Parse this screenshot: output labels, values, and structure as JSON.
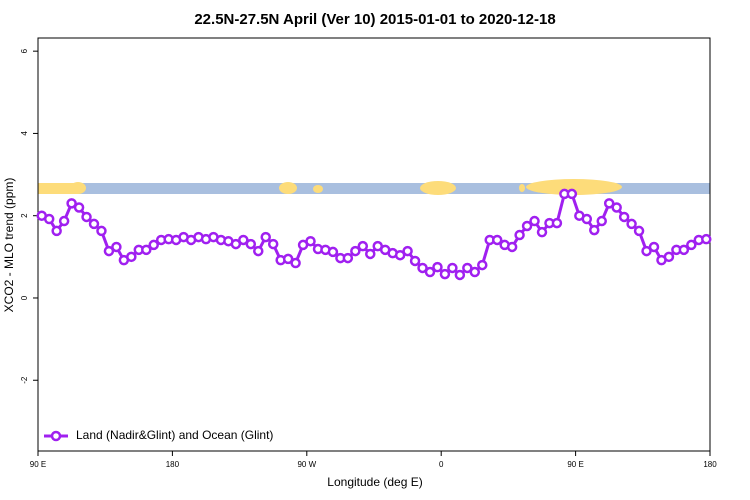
{
  "chart_data": {
    "type": "line",
    "title": "22.5N-27.5N April (Ver 10)   2015-01-01 to 2020-12-18",
    "x_label": "Longitude (deg E)",
    "y_label": "XCO2 - MLO trend (ppm)",
    "xlim": [
      90,
      540
    ],
    "ylim": [
      -3.72,
      6.32
    ],
    "xticks": [
      {
        "value": 90,
        "label": "90 E"
      },
      {
        "value": 180,
        "label": "180"
      },
      {
        "value": 270,
        "label": "90 W"
      },
      {
        "value": 360,
        "label": "0"
      },
      {
        "value": 450,
        "label": "90 E"
      },
      {
        "value": 540,
        "label": "180"
      }
    ],
    "yticks": [
      -2,
      0,
      2,
      4,
      6
    ],
    "legend": "bottom-left",
    "x": [
      92.5,
      97.5,
      102.5,
      107.5,
      112.5,
      117.5,
      122.5,
      127.5,
      132.5,
      137.5,
      142.5,
      147.5,
      152.5,
      157.5,
      162.5,
      167.5,
      172.5,
      177.5,
      182.5,
      187.5,
      192.5,
      197.5,
      202.5,
      207.5,
      212.5,
      217.5,
      222.5,
      227.5,
      232.5,
      237.5,
      242.5,
      247.5,
      252.5,
      257.5,
      262.5,
      267.5,
      272.5,
      277.5,
      282.5,
      287.5,
      292.5,
      297.5,
      302.5,
      307.5,
      312.5,
      317.5,
      322.5,
      327.5,
      332.5,
      337.5,
      342.5,
      347.5,
      352.5,
      357.5,
      362.5,
      367.5,
      372.5,
      377.5,
      382.5,
      387.5,
      392.5,
      397.5,
      402.5,
      407.5,
      412.5,
      417.5,
      422.5,
      427.5,
      432.5,
      437.5,
      442.5,
      447.5,
      452.5,
      457.5,
      462.5,
      467.5,
      472.5,
      477.5,
      482.5,
      487.5,
      492.5,
      497.5,
      502.5,
      507.5,
      512.5,
      517.5,
      522.5,
      527.5,
      532.5,
      537.5
    ],
    "series": [
      {
        "name": "Land (Nadir&Glint) and Ocean (Glint)",
        "color": "#a020f0",
        "values": [
          2.0,
          1.92,
          1.63,
          1.87,
          2.3,
          2.2,
          1.97,
          1.8,
          1.63,
          1.14,
          1.24,
          0.92,
          1.0,
          1.17,
          1.17,
          1.29,
          1.41,
          1.43,
          1.41,
          1.48,
          1.41,
          1.48,
          1.43,
          1.48,
          1.41,
          1.38,
          1.31,
          1.41,
          1.31,
          1.14,
          1.48,
          1.31,
          0.92,
          0.95,
          0.85,
          1.29,
          1.38,
          1.19,
          1.17,
          1.12,
          0.97,
          0.97,
          1.14,
          1.26,
          1.07,
          1.26,
          1.17,
          1.09,
          1.04,
          1.14,
          0.9,
          0.73,
          0.63,
          0.75,
          0.58,
          0.73,
          0.56,
          0.73,
          0.63,
          0.8,
          1.41,
          1.41,
          1.29,
          1.24,
          1.53,
          1.75,
          1.87,
          1.6,
          1.82,
          1.82,
          2.53,
          2.53,
          2.0,
          1.92,
          1.65,
          1.87,
          2.3,
          2.2,
          1.97,
          1.8,
          1.63,
          1.14,
          1.24,
          0.92,
          1.0,
          1.17,
          1.17,
          1.29,
          1.41,
          1.43
        ]
      }
    ]
  }
}
